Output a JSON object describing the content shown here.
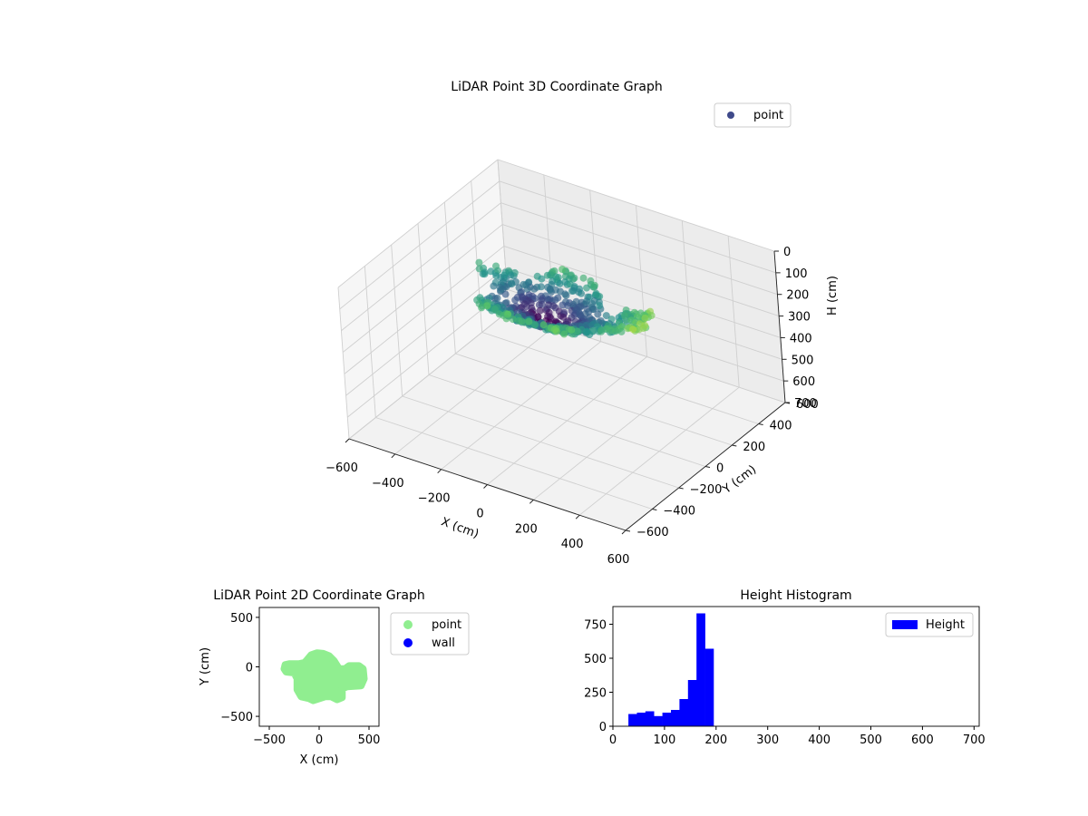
{
  "colors": {
    "point_3d_legend": "#3f4a8a",
    "point_2d": "#90ee90",
    "wall": "#0000ff",
    "histogram": "#0000ff",
    "viridis": [
      "#440154",
      "#3b528b",
      "#21918c",
      "#5ec962",
      "#fde725"
    ]
  },
  "chart_data": [
    {
      "type": "scatter",
      "projection": "3d",
      "title": "LiDAR Point 3D Coordinate Graph",
      "xlabel": "X (cm)",
      "ylabel": "Y (cm)",
      "zlabel": "H (cm)",
      "xlim": [
        -600,
        600
      ],
      "ylim": [
        -600,
        600
      ],
      "zlim": [
        700,
        0
      ],
      "z_inverted": true,
      "xticks": [
        "−600",
        "−400",
        "−200",
        "0",
        "200",
        "400",
        "600"
      ],
      "yticks": [
        "−600",
        "−400",
        "−200",
        "0",
        "200",
        "400",
        "600"
      ],
      "zticks": [
        "0",
        "100",
        "200",
        "300",
        "400",
        "500",
        "600",
        "700"
      ],
      "colormap": "viridis",
      "legend": {
        "labels": [
          "point"
        ],
        "placement": "upper-right"
      },
      "grid": true,
      "series": [
        {
          "name": "point",
          "description_extent": {
            "x": [
              -400,
              450
            ],
            "y": [
              -350,
              150
            ],
            "h": [
              20,
              200
            ]
          }
        }
      ]
    },
    {
      "type": "scatter",
      "title": "LiDAR Point 2D Coordinate Graph",
      "xlabel": "X (cm)",
      "ylabel": "Y (cm)",
      "xlim": [
        -600,
        600
      ],
      "ylim": [
        -600,
        600
      ],
      "xticks": [
        "−500",
        "0",
        "500"
      ],
      "yticks": [
        "−500",
        "0",
        "500"
      ],
      "legend": {
        "labels": [
          "point",
          "wall"
        ],
        "placement": "outside-right"
      },
      "outline": [
        [
          -350,
          -20
        ],
        [
          -330,
          -50
        ],
        [
          -250,
          -60
        ],
        [
          -220,
          -120
        ],
        [
          -220,
          -230
        ],
        [
          -180,
          -300
        ],
        [
          -100,
          -320
        ],
        [
          -60,
          -340
        ],
        [
          0,
          -320
        ],
        [
          60,
          -300
        ],
        [
          120,
          -300
        ],
        [
          180,
          -330
        ],
        [
          230,
          -310
        ],
        [
          230,
          -220
        ],
        [
          280,
          -200
        ],
        [
          420,
          -190
        ],
        [
          450,
          -120
        ],
        [
          440,
          -20
        ],
        [
          400,
          10
        ],
        [
          300,
          10
        ],
        [
          260,
          -20
        ],
        [
          200,
          -20
        ],
        [
          150,
          60
        ],
        [
          100,
          110
        ],
        [
          40,
          135
        ],
        [
          -20,
          140
        ],
        [
          -80,
          120
        ],
        [
          -130,
          60
        ],
        [
          -150,
          40
        ],
        [
          -200,
          30
        ],
        [
          -300,
          30
        ],
        [
          -340,
          20
        ]
      ]
    },
    {
      "type": "bar",
      "title": "Height Histogram",
      "xlabel": "",
      "ylabel": "",
      "xlim": [
        0,
        710
      ],
      "ylim": [
        0,
        880
      ],
      "xticks": [
        "0",
        "100",
        "200",
        "300",
        "400",
        "500",
        "600",
        "700"
      ],
      "yticks": [
        "0",
        "250",
        "500",
        "750"
      ],
      "legend": {
        "labels": [
          "Height"
        ],
        "placement": "upper-right"
      },
      "bin_width": 16.5,
      "bin_starts": [
        30,
        46.5,
        63,
        79.5,
        96,
        112.5,
        129,
        145.5,
        162,
        178.5
      ],
      "values": [
        90,
        100,
        110,
        75,
        100,
        120,
        200,
        340,
        830,
        570
      ]
    }
  ]
}
